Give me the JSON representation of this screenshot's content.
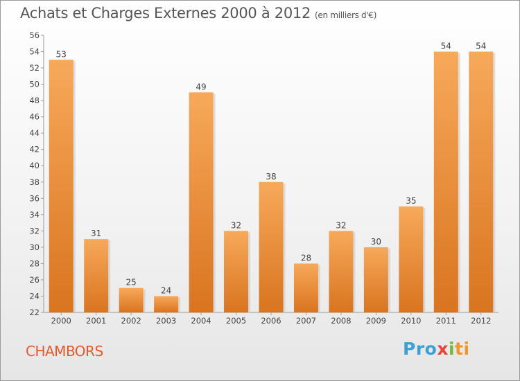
{
  "header": {
    "title": "Achats et Charges Externes 2000 à 2012",
    "subtitle": "(en milliers d'€)"
  },
  "footer": {
    "commune": "CHAMBORS",
    "logo": {
      "p1": "Pro",
      "p2": "x",
      "p3": "i",
      "p4": "ti"
    }
  },
  "colors": {
    "bar_top": "#f7a95a",
    "bar_bottom": "#d9741f",
    "title": "#555555",
    "commune": "#e25a2a"
  },
  "chart_data": {
    "type": "bar",
    "categories": [
      "2000",
      "2001",
      "2002",
      "2003",
      "2004",
      "2005",
      "2006",
      "2007",
      "2008",
      "2009",
      "2010",
      "2011",
      "2012"
    ],
    "values": [
      53,
      31,
      25,
      24,
      49,
      32,
      38,
      28,
      32,
      30,
      35,
      54,
      54
    ],
    "data_labels": [
      "53",
      "31",
      "25",
      "24",
      "49",
      "32",
      "38",
      "28",
      "32",
      "30",
      "35",
      "54",
      "54"
    ],
    "ylim": [
      22,
      56
    ],
    "yticks": [
      22,
      24,
      26,
      28,
      30,
      32,
      34,
      36,
      38,
      40,
      42,
      44,
      46,
      48,
      50,
      52,
      54,
      56
    ],
    "grid": false
  }
}
